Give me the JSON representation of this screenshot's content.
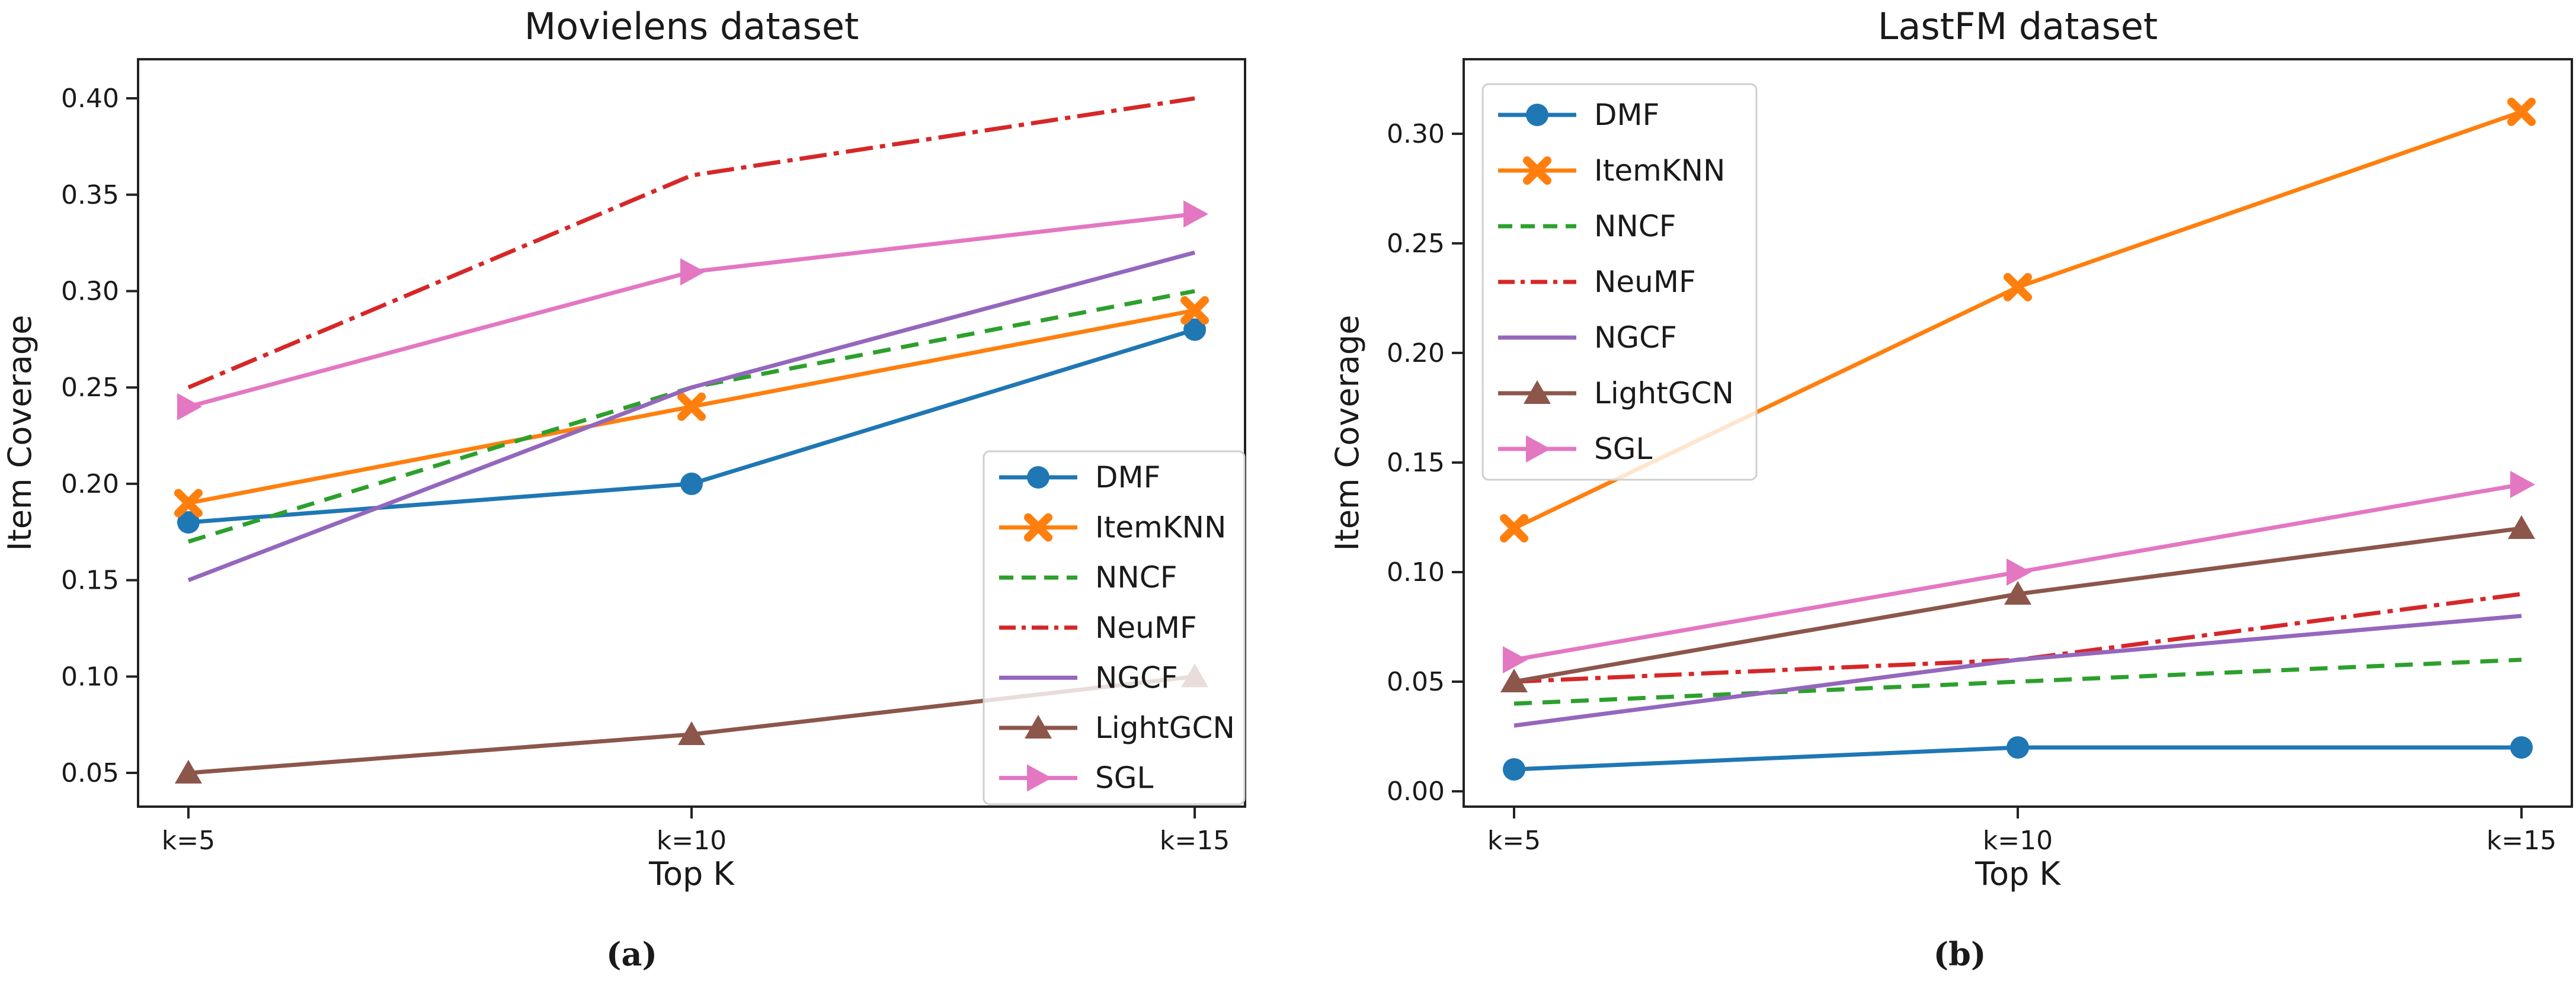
{
  "figure": {
    "captions": [
      "(a)",
      "(b)"
    ]
  },
  "chart_data": [
    {
      "type": "line",
      "title": "Movielens dataset",
      "xlabel": "Top K",
      "ylabel": "Item Coverage",
      "categories": [
        "k=5",
        "k=10",
        "k=15"
      ],
      "x": [
        5,
        10,
        15
      ],
      "xlim": [
        4.5,
        15.5
      ],
      "ylim": [
        0.0325,
        0.4203
      ],
      "yticks": [
        0.05,
        0.1,
        0.15,
        0.2,
        0.25,
        0.3,
        0.35,
        0.4
      ],
      "grid": false,
      "legend_position": "center right",
      "series": [
        {
          "name": "DMF",
          "values": [
            0.18,
            0.2,
            0.28
          ],
          "color": "#1f77b4",
          "linestyle": "solid",
          "marker": "circle"
        },
        {
          "name": "ItemKNN",
          "values": [
            0.19,
            0.24,
            0.29
          ],
          "color": "#ff7f0e",
          "linestyle": "solid",
          "marker": "x"
        },
        {
          "name": "NNCF",
          "values": [
            0.17,
            0.25,
            0.3
          ],
          "color": "#2ca02c",
          "linestyle": "dashed",
          "marker": "none"
        },
        {
          "name": "NeuMF",
          "values": [
            0.25,
            0.36,
            0.4
          ],
          "color": "#d62728",
          "linestyle": "dashdot",
          "marker": "none"
        },
        {
          "name": "NGCF",
          "values": [
            0.15,
            0.25,
            0.32
          ],
          "color": "#9467bd",
          "linestyle": "solid",
          "marker": "none"
        },
        {
          "name": "LightGCN",
          "values": [
            0.05,
            0.07,
            0.1
          ],
          "color": "#8c564b",
          "linestyle": "solid",
          "marker": "triangle-up"
        },
        {
          "name": "SGL",
          "values": [
            0.24,
            0.31,
            0.34
          ],
          "color": "#e377c2",
          "linestyle": "solid",
          "marker": "triangle-right"
        }
      ]
    },
    {
      "type": "line",
      "title": "LastFM dataset",
      "xlabel": "Top K",
      "ylabel": "Item Coverage",
      "categories": [
        "k=5",
        "k=10",
        "k=15"
      ],
      "x": [
        5,
        10,
        15
      ],
      "xlim": [
        4.5,
        15.5
      ],
      "ylim": [
        -0.007,
        0.334
      ],
      "yticks": [
        0.0,
        0.05,
        0.1,
        0.15,
        0.2,
        0.25,
        0.3
      ],
      "grid": false,
      "legend_position": "upper left",
      "series": [
        {
          "name": "DMF",
          "values": [
            0.01,
            0.02,
            0.02
          ],
          "color": "#1f77b4",
          "linestyle": "solid",
          "marker": "circle"
        },
        {
          "name": "ItemKNN",
          "values": [
            0.12,
            0.23,
            0.31
          ],
          "color": "#ff7f0e",
          "linestyle": "solid",
          "marker": "x"
        },
        {
          "name": "NNCF",
          "values": [
            0.04,
            0.05,
            0.06
          ],
          "color": "#2ca02c",
          "linestyle": "dashed",
          "marker": "none"
        },
        {
          "name": "NeuMF",
          "values": [
            0.05,
            0.06,
            0.09
          ],
          "color": "#d62728",
          "linestyle": "dashdot",
          "marker": "none"
        },
        {
          "name": "NGCF",
          "values": [
            0.03,
            0.06,
            0.08
          ],
          "color": "#9467bd",
          "linestyle": "solid",
          "marker": "none"
        },
        {
          "name": "LightGCN",
          "values": [
            0.05,
            0.09,
            0.12
          ],
          "color": "#8c564b",
          "linestyle": "solid",
          "marker": "triangle-up"
        },
        {
          "name": "SGL",
          "values": [
            0.06,
            0.1,
            0.14
          ],
          "color": "#e377c2",
          "linestyle": "solid",
          "marker": "triangle-right"
        }
      ]
    }
  ]
}
